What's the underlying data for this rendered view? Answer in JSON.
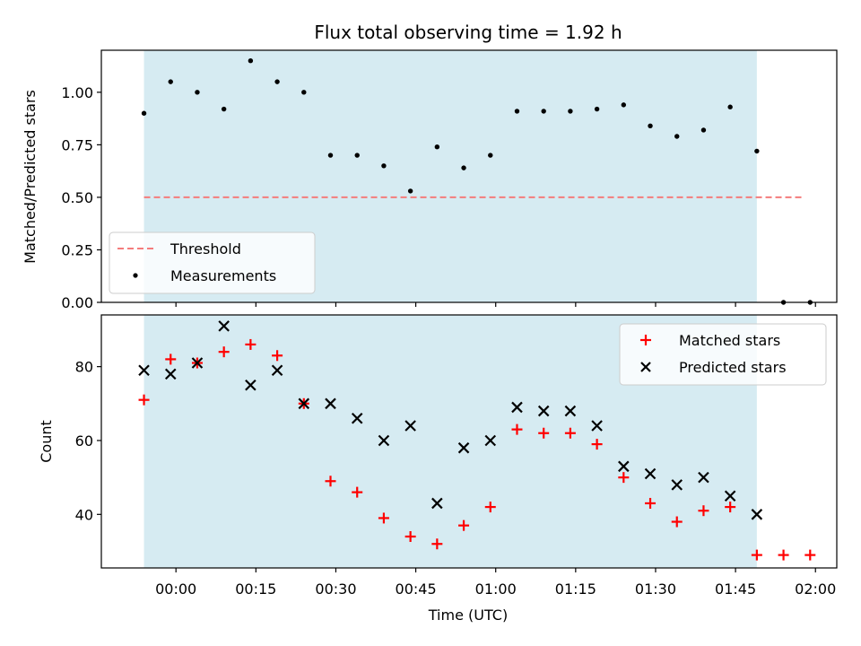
{
  "chart_data": [
    {
      "type": "scatter",
      "title": "Flux total observing time = 1.92 h",
      "xlabel": "",
      "ylabel": "Matched/Predicted stars",
      "xlim_minutes": [
        -14.0,
        124.0
      ],
      "ylim": [
        0.0,
        1.2
      ],
      "yticks": [
        0.0,
        0.25,
        0.5,
        0.75,
        1.0
      ],
      "ytick_labels": [
        "0.00",
        "0.25",
        "0.50",
        "0.75",
        "1.00"
      ],
      "x_unit": "minutes after 00:00 UTC",
      "observing_window_minutes": [
        -6.0,
        109.0
      ],
      "threshold": {
        "label": "Threshold",
        "value": 0.5,
        "x_range_minutes": [
          -6.0,
          118.0
        ],
        "color": "#f47c7c"
      },
      "series": [
        {
          "name": "Measurements",
          "color": "#000000",
          "x": [
            -6,
            -1,
            4,
            9,
            14,
            19,
            24,
            29,
            34,
            39,
            44,
            49,
            54,
            59,
            64,
            69,
            74,
            79,
            84,
            89,
            94,
            99,
            104,
            109,
            114,
            119
          ],
          "y": [
            0.9,
            1.05,
            1.0,
            0.92,
            1.15,
            1.05,
            1.0,
            0.7,
            0.7,
            0.65,
            0.53,
            0.74,
            0.64,
            0.7,
            0.91,
            0.91,
            0.91,
            0.92,
            0.94,
            0.84,
            0.79,
            0.82,
            0.93,
            0.72,
            0.0,
            0.0
          ]
        }
      ],
      "legend": {
        "position": "lower-left",
        "entries": [
          "Threshold",
          "Measurements"
        ]
      }
    },
    {
      "type": "scatter",
      "title": "",
      "xlabel": "Time (UTC)",
      "ylabel": "Count",
      "xlim_minutes": [
        -14.0,
        124.0
      ],
      "ylim": [
        25.5,
        94.0
      ],
      "yticks": [
        40,
        60,
        80
      ],
      "ytick_labels": [
        "40",
        "60",
        "80"
      ],
      "xticks_minutes": [
        0,
        15,
        30,
        45,
        60,
        75,
        90,
        105,
        120
      ],
      "xtick_labels": [
        "00:00",
        "00:15",
        "00:30",
        "00:45",
        "01:00",
        "01:15",
        "01:30",
        "01:45",
        "02:00"
      ],
      "observing_window_minutes": [
        -6.0,
        109.0
      ],
      "series": [
        {
          "name": "Matched stars",
          "marker": "plus",
          "color": "#ff0000",
          "x": [
            -6,
            -1,
            4,
            9,
            14,
            19,
            24,
            29,
            34,
            39,
            44,
            49,
            54,
            59,
            64,
            69,
            74,
            79,
            84,
            89,
            94,
            99,
            104,
            109,
            114,
            119
          ],
          "y": [
            71,
            82,
            81,
            84,
            86,
            83,
            70,
            49,
            46,
            39,
            34,
            32,
            37,
            42,
            63,
            62,
            62,
            59,
            50,
            43,
            38,
            41,
            42,
            29,
            29,
            29
          ]
        },
        {
          "name": "Predicted stars",
          "marker": "x",
          "color": "#000000",
          "x": [
            -6,
            -1,
            4,
            9,
            14,
            19,
            24,
            29,
            34,
            39,
            44,
            49,
            54,
            59,
            64,
            69,
            74,
            79,
            84,
            89,
            94,
            99,
            104,
            109
          ],
          "y": [
            79,
            78,
            81,
            91,
            75,
            79,
            70,
            70,
            66,
            60,
            64,
            43,
            58,
            60,
            69,
            68,
            68,
            64,
            53,
            51,
            48,
            50,
            45,
            40
          ]
        }
      ],
      "legend": {
        "position": "upper-right",
        "entries": [
          "Matched stars",
          "Predicted stars"
        ]
      }
    }
  ],
  "colors": {
    "window_fill": "#add8e6",
    "threshold": "#f47c7c",
    "matched": "#ff0000",
    "predicted": "#000000"
  }
}
